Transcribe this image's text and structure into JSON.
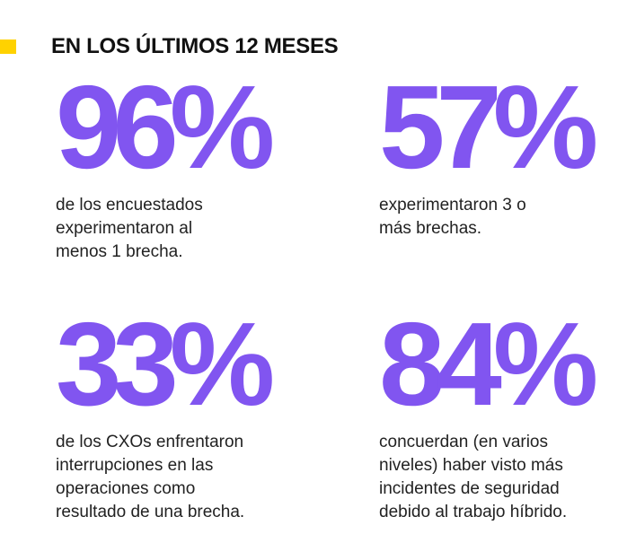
{
  "heading": "EN LOS ÚLTIMOS 12 MESES",
  "colors": {
    "accent_yellow": "#ffd200",
    "stat_purple": "#8155f0",
    "text_dark": "#222222"
  },
  "stats": [
    {
      "value": "96%",
      "description": "de los encuestados\nexperimentaron al\nmenos 1 brecha."
    },
    {
      "value": "57%",
      "description": "experimentaron 3 o\nmás brechas."
    },
    {
      "value": "33%",
      "description": "de los CXOs enfrentaron\ninterrupciones en las\noperaciones como\nresultado de una brecha."
    },
    {
      "value": "84%",
      "description": "concuerdan (en varios\nniveles) haber visto más\nincidentes de seguridad\ndebido al trabajo híbrido."
    }
  ]
}
